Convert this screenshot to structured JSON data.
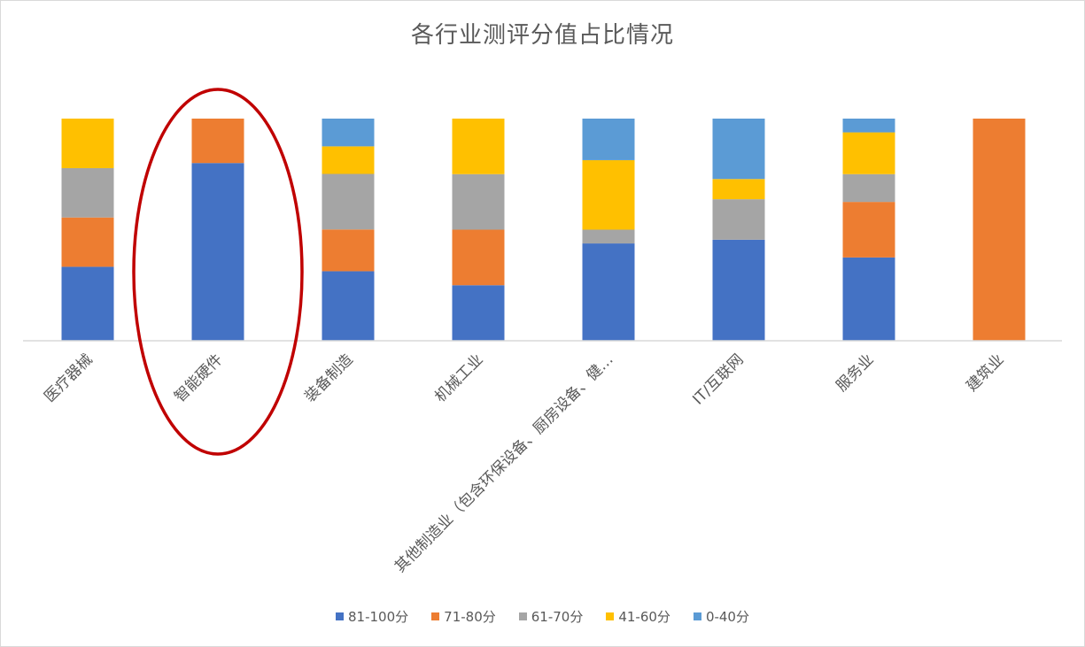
{
  "chart_data": {
    "type": "bar",
    "stacked": "percent",
    "title": "各行业测评分值占比情况",
    "categories": [
      "医疗器械",
      "智能硬件",
      "装备制造",
      "机械工业",
      "其他制造业（包含环保设备、厨房设备、健…",
      "IT/互联网",
      "服务业",
      "建筑业"
    ],
    "series": [
      {
        "name": "81-100分",
        "color": "#4472C4",
        "values": [
          33.3,
          80,
          31.3,
          25,
          43.8,
          45.5,
          37.5,
          0
        ]
      },
      {
        "name": "71-80分",
        "color": "#ED7D31",
        "values": [
          22.2,
          20,
          18.8,
          25,
          0,
          0,
          25,
          100
        ]
      },
      {
        "name": "61-70分",
        "color": "#A5A5A5",
        "values": [
          22.2,
          0,
          25,
          25,
          6.2,
          18.2,
          12.5,
          0
        ]
      },
      {
        "name": "41-60分",
        "color": "#FFC000",
        "values": [
          22.3,
          0,
          12.4,
          25,
          31.3,
          9.1,
          18.8,
          0
        ]
      },
      {
        "name": "0-40分",
        "color": "#5B9BD5",
        "values": [
          0,
          0,
          12.5,
          0,
          18.7,
          27.2,
          6.2,
          0
        ]
      }
    ],
    "ylim": [
      0,
      100
    ],
    "grid": false,
    "legend_position": "bottom",
    "highlight": {
      "category": "智能硬件",
      "shape": "ellipse",
      "color": "#C00000"
    }
  }
}
